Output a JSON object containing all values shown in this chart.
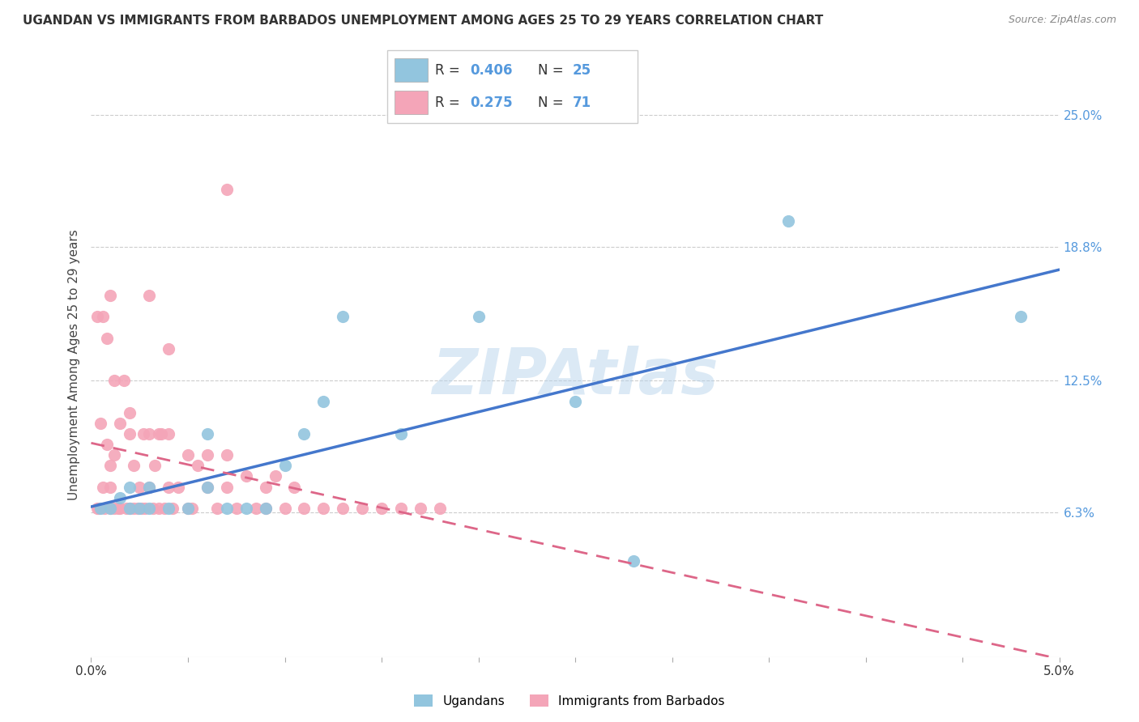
{
  "title": "UGANDAN VS IMMIGRANTS FROM BARBADOS UNEMPLOYMENT AMONG AGES 25 TO 29 YEARS CORRELATION CHART",
  "source": "Source: ZipAtlas.com",
  "ylabel": "Unemployment Among Ages 25 to 29 years",
  "ytick_labels": [
    "6.3%",
    "12.5%",
    "18.8%",
    "25.0%"
  ],
  "ytick_values": [
    0.063,
    0.125,
    0.188,
    0.25
  ],
  "xlim": [
    0.0,
    0.05
  ],
  "ylim": [
    -0.005,
    0.27
  ],
  "legend_label1": "Ugandans",
  "legend_label2": "Immigrants from Barbados",
  "r1": 0.406,
  "n1": 25,
  "r2": 0.275,
  "n2": 71,
  "color_blue": "#92c5de",
  "color_pink": "#f4a5b8",
  "color_blue_text": "#5599dd",
  "watermark": "ZIPAtlas",
  "ugandan_x": [
    0.0005,
    0.001,
    0.0015,
    0.002,
    0.002,
    0.0025,
    0.003,
    0.003,
    0.004,
    0.005,
    0.006,
    0.006,
    0.007,
    0.008,
    0.009,
    0.01,
    0.011,
    0.012,
    0.013,
    0.016,
    0.02,
    0.025,
    0.028,
    0.036,
    0.048
  ],
  "ugandan_y": [
    0.065,
    0.065,
    0.07,
    0.065,
    0.075,
    0.065,
    0.065,
    0.075,
    0.065,
    0.065,
    0.075,
    0.1,
    0.065,
    0.065,
    0.065,
    0.085,
    0.1,
    0.115,
    0.155,
    0.1,
    0.155,
    0.115,
    0.04,
    0.2,
    0.155
  ],
  "barbados_x": [
    0.0003,
    0.0004,
    0.0006,
    0.0007,
    0.0008,
    0.001,
    0.001,
    0.001,
    0.0012,
    0.0012,
    0.0014,
    0.0015,
    0.0015,
    0.0017,
    0.0018,
    0.002,
    0.002,
    0.0022,
    0.0022,
    0.0024,
    0.0025,
    0.0026,
    0.0027,
    0.0028,
    0.003,
    0.003,
    0.0032,
    0.0033,
    0.0035,
    0.0036,
    0.0038,
    0.004,
    0.004,
    0.0042,
    0.0045,
    0.005,
    0.005,
    0.0052,
    0.0055,
    0.006,
    0.006,
    0.0065,
    0.007,
    0.007,
    0.0075,
    0.008,
    0.0085,
    0.009,
    0.009,
    0.0095,
    0.01,
    0.0105,
    0.011,
    0.012,
    0.013,
    0.014,
    0.015,
    0.016,
    0.017,
    0.018,
    0.0003,
    0.0005,
    0.0006,
    0.0008,
    0.001,
    0.0012,
    0.002,
    0.003,
    0.004,
    0.0035,
    0.007
  ],
  "barbados_y": [
    0.065,
    0.065,
    0.075,
    0.065,
    0.095,
    0.065,
    0.075,
    0.085,
    0.065,
    0.09,
    0.065,
    0.105,
    0.065,
    0.125,
    0.065,
    0.065,
    0.1,
    0.065,
    0.085,
    0.065,
    0.075,
    0.065,
    0.1,
    0.065,
    0.075,
    0.1,
    0.065,
    0.085,
    0.065,
    0.1,
    0.065,
    0.075,
    0.1,
    0.065,
    0.075,
    0.065,
    0.09,
    0.065,
    0.085,
    0.075,
    0.09,
    0.065,
    0.075,
    0.09,
    0.065,
    0.08,
    0.065,
    0.075,
    0.065,
    0.08,
    0.065,
    0.075,
    0.065,
    0.065,
    0.065,
    0.065,
    0.065,
    0.065,
    0.065,
    0.065,
    0.155,
    0.105,
    0.155,
    0.145,
    0.165,
    0.125,
    0.11,
    0.165,
    0.14,
    0.1,
    0.215
  ]
}
